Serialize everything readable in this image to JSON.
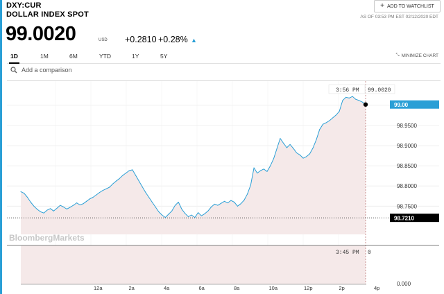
{
  "header": {
    "ticker": "DXY:CUR",
    "name": "DOLLAR INDEX SPOT",
    "watchlist_label": "ADD TO WATCHLIST",
    "as_of": "AS OF 03:53 PM EST 02/12/2020 EDT",
    "price": "99.0020",
    "currency": "USD",
    "change": "+0.2810",
    "change_pct": "+0.28%",
    "accent_color": "#2a9fd6"
  },
  "tabs": [
    "1D",
    "1M",
    "6M",
    "YTD",
    "1Y",
    "5Y"
  ],
  "active_tab": "1D",
  "minimize_label": "MINIMIZE CHART",
  "comparison_placeholder": "Add a comparison",
  "watermark": "BloombergMarkets",
  "chart_data": {
    "type": "line",
    "y_ticks": [
      "99.0000",
      "98.9500",
      "98.9000",
      "98.8500",
      "98.8000",
      "98.7500"
    ],
    "ylim": [
      98.68,
      99.06
    ],
    "x_ticks": [
      "12a",
      "2a",
      "4a",
      "6a",
      "8a",
      "10a",
      "12p",
      "2p",
      "4p"
    ],
    "last_price_label": "99.00",
    "previous_close_label": "98.7210",
    "previous_close": 98.721,
    "crosshair_time": "3:56 PM",
    "crosshair_value": "99.0020",
    "volume_time": "3:45 PM",
    "volume_value": "0",
    "volume_axis_label": "0.000",
    "series": [
      {
        "values": [
          98.786,
          98.782,
          98.772,
          98.76,
          98.75,
          98.742,
          98.736,
          98.733,
          98.74,
          98.744,
          98.738,
          98.745,
          98.752,
          98.748,
          98.743,
          98.747,
          98.752,
          98.758,
          98.753,
          98.756,
          98.762,
          98.768,
          98.772,
          98.778,
          98.784,
          98.789,
          98.793,
          98.797,
          98.805,
          98.812,
          98.818,
          98.826,
          98.832,
          98.838,
          98.84,
          98.826,
          98.812,
          98.798,
          98.784,
          98.772,
          98.76,
          98.748,
          98.736,
          98.728,
          98.722,
          98.73,
          98.738,
          98.752,
          98.76,
          98.743,
          98.732,
          98.724,
          98.728,
          98.722,
          98.734,
          98.726,
          98.731,
          98.738,
          98.748,
          98.755,
          98.752,
          98.757,
          98.762,
          98.758,
          98.764,
          98.76,
          98.75,
          98.756,
          98.765,
          98.78,
          98.802,
          98.845,
          98.832,
          98.838,
          98.842,
          98.836,
          98.85,
          98.868,
          98.893,
          98.918,
          98.906,
          98.895,
          98.903,
          98.893,
          98.882,
          98.877,
          98.869,
          98.873,
          98.88,
          98.895,
          98.915,
          98.94,
          98.953,
          98.957,
          98.962,
          98.969,
          98.976,
          98.985,
          99.012,
          99.02,
          99.018,
          99.022,
          99.015,
          99.012,
          99.008,
          99.002
        ]
      }
    ]
  }
}
